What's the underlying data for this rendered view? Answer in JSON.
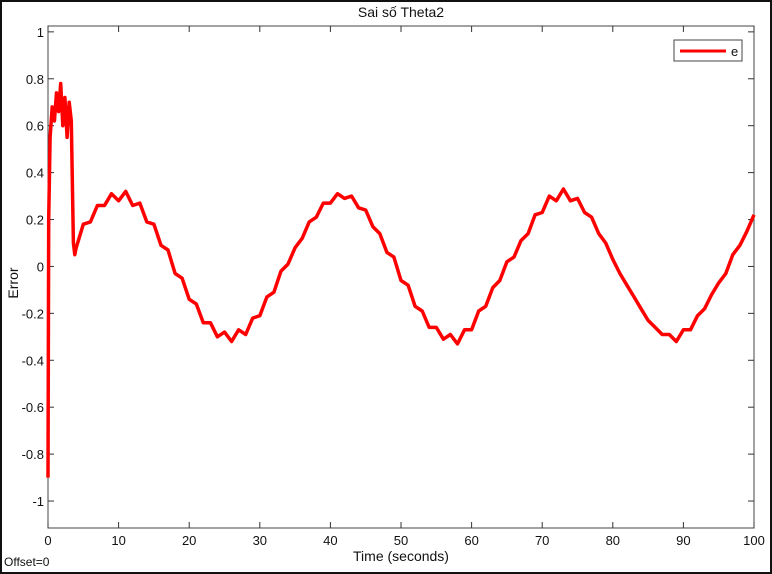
{
  "chart_data": {
    "type": "line",
    "title": "Sai số Theta2",
    "xlabel": "Time (seconds)",
    "ylabel": "Error",
    "xlim": [
      0,
      100
    ],
    "ylim": [
      -1.115,
      1.025
    ],
    "xticks": [
      0,
      10,
      20,
      30,
      40,
      50,
      60,
      70,
      80,
      90,
      100
    ],
    "yticks": [
      -1,
      -0.8,
      -0.6,
      -0.4,
      -0.2,
      0,
      0.2,
      0.4,
      0.6,
      0.8,
      1
    ],
    "ytick_labels": [
      "-1",
      "-0.8",
      "-0.6",
      "-0.4",
      "-0.2",
      "0",
      "0.2",
      "0.4",
      "0.6",
      "0.8",
      "1"
    ],
    "grid": false,
    "legend": {
      "position": "top-right",
      "entries": [
        "e"
      ]
    },
    "annotation": "Offset=0",
    "series": [
      {
        "name": "e",
        "color": "#ff0000",
        "x": [
          0,
          0.1,
          0.3,
          0.6,
          0.9,
          1.2,
          1.5,
          1.8,
          2.1,
          2.4,
          2.7,
          3.0,
          3.3,
          3.6,
          3.8,
          4,
          5,
          6,
          7,
          8,
          9,
          10,
          11,
          12,
          13,
          14,
          15,
          16,
          17,
          18,
          19,
          20,
          21,
          22,
          23,
          24,
          25,
          26,
          27,
          28,
          29,
          30,
          31,
          32,
          33,
          34,
          35,
          36,
          37,
          38,
          39,
          40,
          41,
          42,
          43,
          44,
          45,
          46,
          47,
          48,
          49,
          50,
          51,
          52,
          53,
          54,
          55,
          56,
          57,
          58,
          59,
          60,
          61,
          62,
          63,
          64,
          65,
          66,
          67,
          68,
          69,
          70,
          71,
          72,
          73,
          74,
          75,
          76,
          77,
          78,
          79,
          80,
          81,
          82,
          83,
          84,
          85,
          86,
          87,
          88,
          89,
          90,
          91,
          92,
          93,
          94,
          95,
          96,
          97,
          98,
          99,
          100
        ],
        "y": [
          -0.9,
          0.2,
          0.55,
          0.68,
          0.62,
          0.74,
          0.66,
          0.78,
          0.6,
          0.72,
          0.55,
          0.7,
          0.62,
          0.1,
          0.05,
          0.08,
          0.18,
          0.19,
          0.26,
          0.26,
          0.31,
          0.28,
          0.32,
          0.26,
          0.27,
          0.19,
          0.18,
          0.09,
          0.07,
          -0.03,
          -0.05,
          -0.14,
          -0.16,
          -0.24,
          -0.24,
          -0.3,
          -0.28,
          -0.32,
          -0.27,
          -0.29,
          -0.22,
          -0.21,
          -0.13,
          -0.11,
          -0.02,
          0.01,
          0.08,
          0.12,
          0.19,
          0.21,
          0.27,
          0.27,
          0.31,
          0.29,
          0.3,
          0.25,
          0.24,
          0.17,
          0.14,
          0.06,
          0.04,
          -0.06,
          -0.08,
          -0.17,
          -0.19,
          -0.26,
          -0.26,
          -0.31,
          -0.29,
          -0.33,
          -0.27,
          -0.27,
          -0.19,
          -0.17,
          -0.09,
          -0.06,
          0.02,
          0.04,
          0.11,
          0.14,
          0.22,
          0.23,
          0.3,
          0.28,
          0.33,
          0.28,
          0.29,
          0.23,
          0.21,
          0.14,
          0.1,
          0.03,
          -0.03,
          -0.08,
          -0.13,
          -0.18,
          -0.23,
          -0.26,
          -0.29,
          -0.29,
          -0.32,
          -0.27,
          -0.27,
          -0.21,
          -0.18,
          -0.12,
          -0.07,
          -0.03,
          0.05,
          0.09,
          0.15,
          0.22
        ]
      }
    ]
  }
}
